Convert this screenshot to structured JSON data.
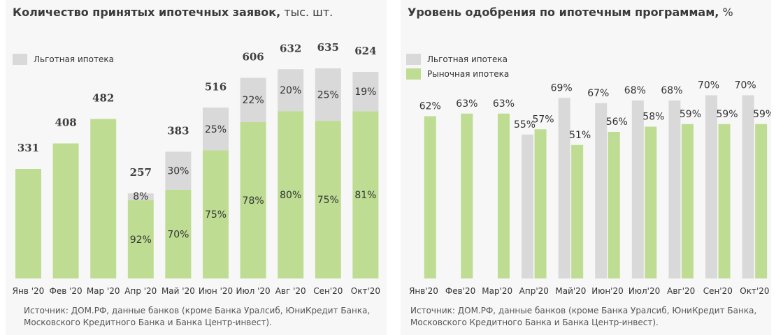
{
  "left": {
    "title": "Количество принятых ипотечных заявок,",
    "unit": " тыс. шт.",
    "legend": [
      {
        "label": "Льготная ипотека",
        "color": "#d9d9d9"
      }
    ],
    "source_line1": "Источник: ДОМ.РФ, данные банков (кроме Банка Уралсиб, ЮниКредит Банка,",
    "source_line2": "Московского Кредитного Банка и Банка Центр-инвест)."
  },
  "right": {
    "title": "Уровень одобрения по ипотечным программам,",
    "unit": " %",
    "legend": [
      {
        "label": "Льготная ипотека",
        "color": "#d9d9d9"
      },
      {
        "label": "Рыночная ипотека",
        "color": "#bedd93"
      }
    ],
    "source_line1": "Источник: ДОМ.РФ, данные банков (кроме Банка Уралсиб, ЮниКредит Банка,",
    "source_line2": "Московского Кредитного Банка и Банка Центр-инвест)."
  },
  "colors": {
    "market": "#bedd93",
    "preferential": "#d9d9d9",
    "background": "#f7f7f7"
  },
  "chart_data": [
    {
      "type": "bar",
      "stacked": true,
      "title": "Количество принятых ипотечных заявок, тыс. шт.",
      "categories": [
        "Янв '20",
        "Фев '20",
        "Мар '20",
        "Апр '20",
        "Май '20",
        "Июн '20",
        "Июл '20",
        "Авг '20",
        "Сен'20",
        "Окт'20"
      ],
      "totals": [
        331,
        408,
        482,
        257,
        383,
        516,
        606,
        632,
        635,
        624
      ],
      "series": [
        {
          "share_labels": [
            null,
            null,
            null,
            "92%",
            "70%",
            "75%",
            "78%",
            "80%",
            "75%",
            "81%"
          ],
          "shares": [
            100,
            100,
            100,
            92,
            70,
            75,
            78,
            80,
            75,
            81
          ]
        },
        {
          "name": "Льготная ипотека",
          "share_labels": [
            null,
            null,
            null,
            "8%",
            "30%",
            "25%",
            "22%",
            "20%",
            "25%",
            "19%"
          ],
          "shares": [
            0,
            0,
            0,
            8,
            30,
            25,
            22,
            20,
            25,
            19
          ]
        }
      ],
      "ylim": [
        0,
        700
      ],
      "grid": false,
      "legend_position": "top-left"
    },
    {
      "type": "bar",
      "grouped": true,
      "title": "Уровень одобрения по ипотечным программам, %",
      "categories": [
        "Янв'20",
        "Фев'20",
        "Мар'20",
        "Апр'20",
        "Май'20",
        "Июн'20",
        "Июл'20",
        "Авг'20",
        "Сен'20",
        "Окт'20"
      ],
      "series": [
        {
          "name": "Льготная ипотека",
          "values": [
            null,
            null,
            null,
            55,
            69,
            67,
            68,
            68,
            70,
            70
          ],
          "labels": [
            "",
            "",
            "",
            "55%",
            "69%",
            "67%",
            "68%",
            "68%",
            "70%",
            "70%"
          ]
        },
        {
          "name": "Рыночная ипотека",
          "values": [
            62,
            63,
            63,
            57,
            51,
            56,
            58,
            59,
            59,
            59
          ],
          "labels": [
            "62%",
            "63%",
            "63%",
            "57%",
            "51%",
            "56%",
            "58%",
            "59%",
            "59%",
            "59%"
          ]
        }
      ],
      "ylim": [
        0,
        92
      ],
      "grid": false,
      "legend_position": "top-left"
    }
  ]
}
